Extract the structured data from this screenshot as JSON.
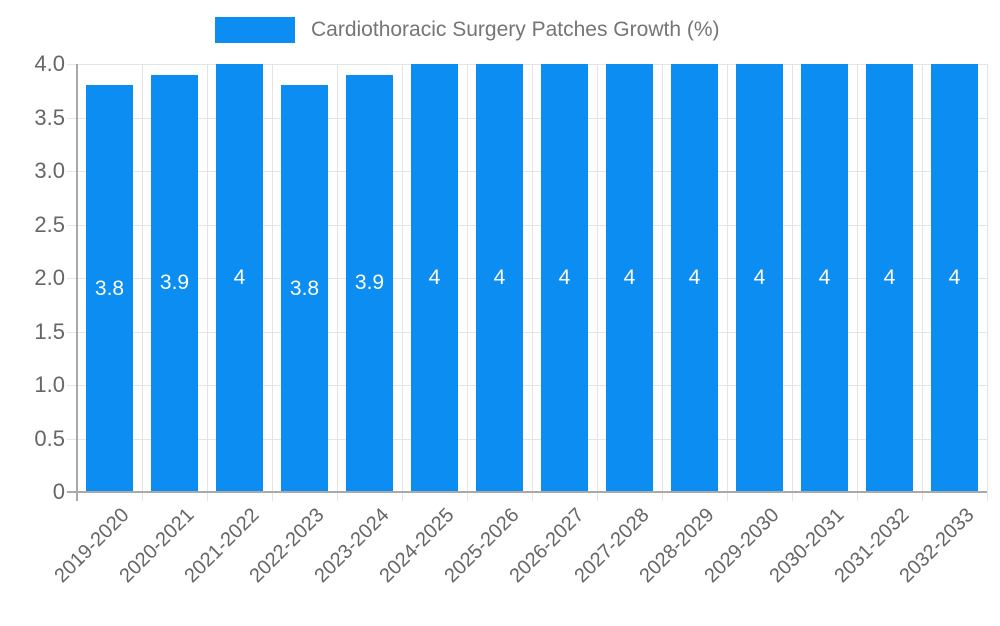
{
  "chart_data": {
    "type": "bar",
    "title": "Cardiothoracic Surgery Patches Growth (%)",
    "categories": [
      "2019-2020",
      "2020-2021",
      "2021-2022",
      "2022-2023",
      "2023-2024",
      "2024-2025",
      "2025-2026",
      "2026-2027",
      "2027-2028",
      "2028-2029",
      "2029-2030",
      "2030-2031",
      "2031-2032",
      "2032-2033"
    ],
    "values": [
      3.8,
      3.9,
      4,
      3.8,
      3.9,
      4,
      4,
      4,
      4,
      4,
      4,
      4,
      4,
      4
    ],
    "bar_labels": [
      "3.8",
      "3.9",
      "4",
      "3.8",
      "3.9",
      "4",
      "4",
      "4",
      "4",
      "4",
      "4",
      "4",
      "4",
      "4"
    ],
    "xlabel": "",
    "ylabel": "",
    "ylim": [
      0,
      4
    ],
    "yticks": [
      {
        "value": 0,
        "label": "0"
      },
      {
        "value": 0.5,
        "label": "0.5"
      },
      {
        "value": 1,
        "label": "1.0"
      },
      {
        "value": 1.5,
        "label": "1.5"
      },
      {
        "value": 2,
        "label": "2.0"
      },
      {
        "value": 2.5,
        "label": "2.5"
      },
      {
        "value": 3,
        "label": "3.0"
      },
      {
        "value": 3.5,
        "label": "3.5"
      },
      {
        "value": 4,
        "label": "4.0"
      }
    ],
    "grid": true,
    "legend_position": "top",
    "colors": {
      "bar": "#0b8df2",
      "bar_value_label": "#ffffff",
      "gridline": "#e4e4e4",
      "axis_line": "#a9a9a9",
      "tick_label": "#666666",
      "legend_text": "#757575",
      "background": "#ffffff"
    }
  }
}
